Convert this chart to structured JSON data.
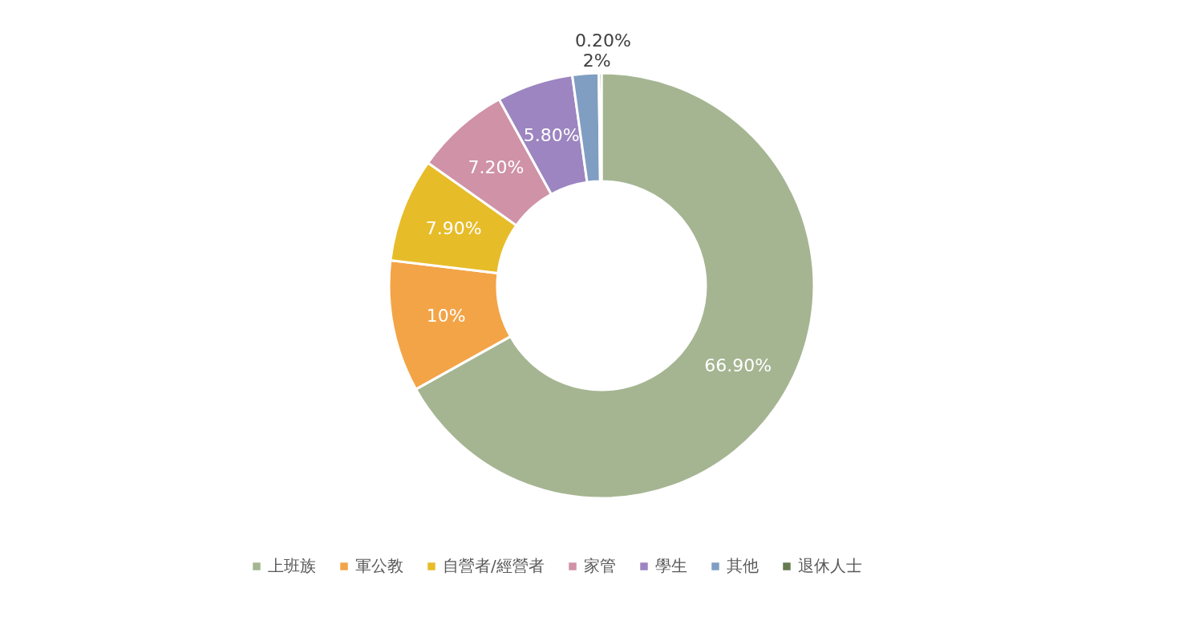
{
  "chart_data": {
    "type": "donut",
    "categories": [
      "上班族",
      "軍公教",
      "自營者/經營者",
      "家管",
      "學生",
      "其他",
      "退休人士"
    ],
    "values": [
      66.9,
      10,
      7.9,
      7.2,
      5.8,
      2,
      0.2
    ],
    "value_labels": [
      "66.90%",
      "10%",
      "7.90%",
      "7.20%",
      "5.80%",
      "2%",
      "0.20%"
    ],
    "colors": [
      "#a5b592",
      "#f3a447",
      "#e7bc29",
      "#d092a7",
      "#9c85c0",
      "#809ec2",
      "#637b4f"
    ],
    "legend": "bottom"
  }
}
